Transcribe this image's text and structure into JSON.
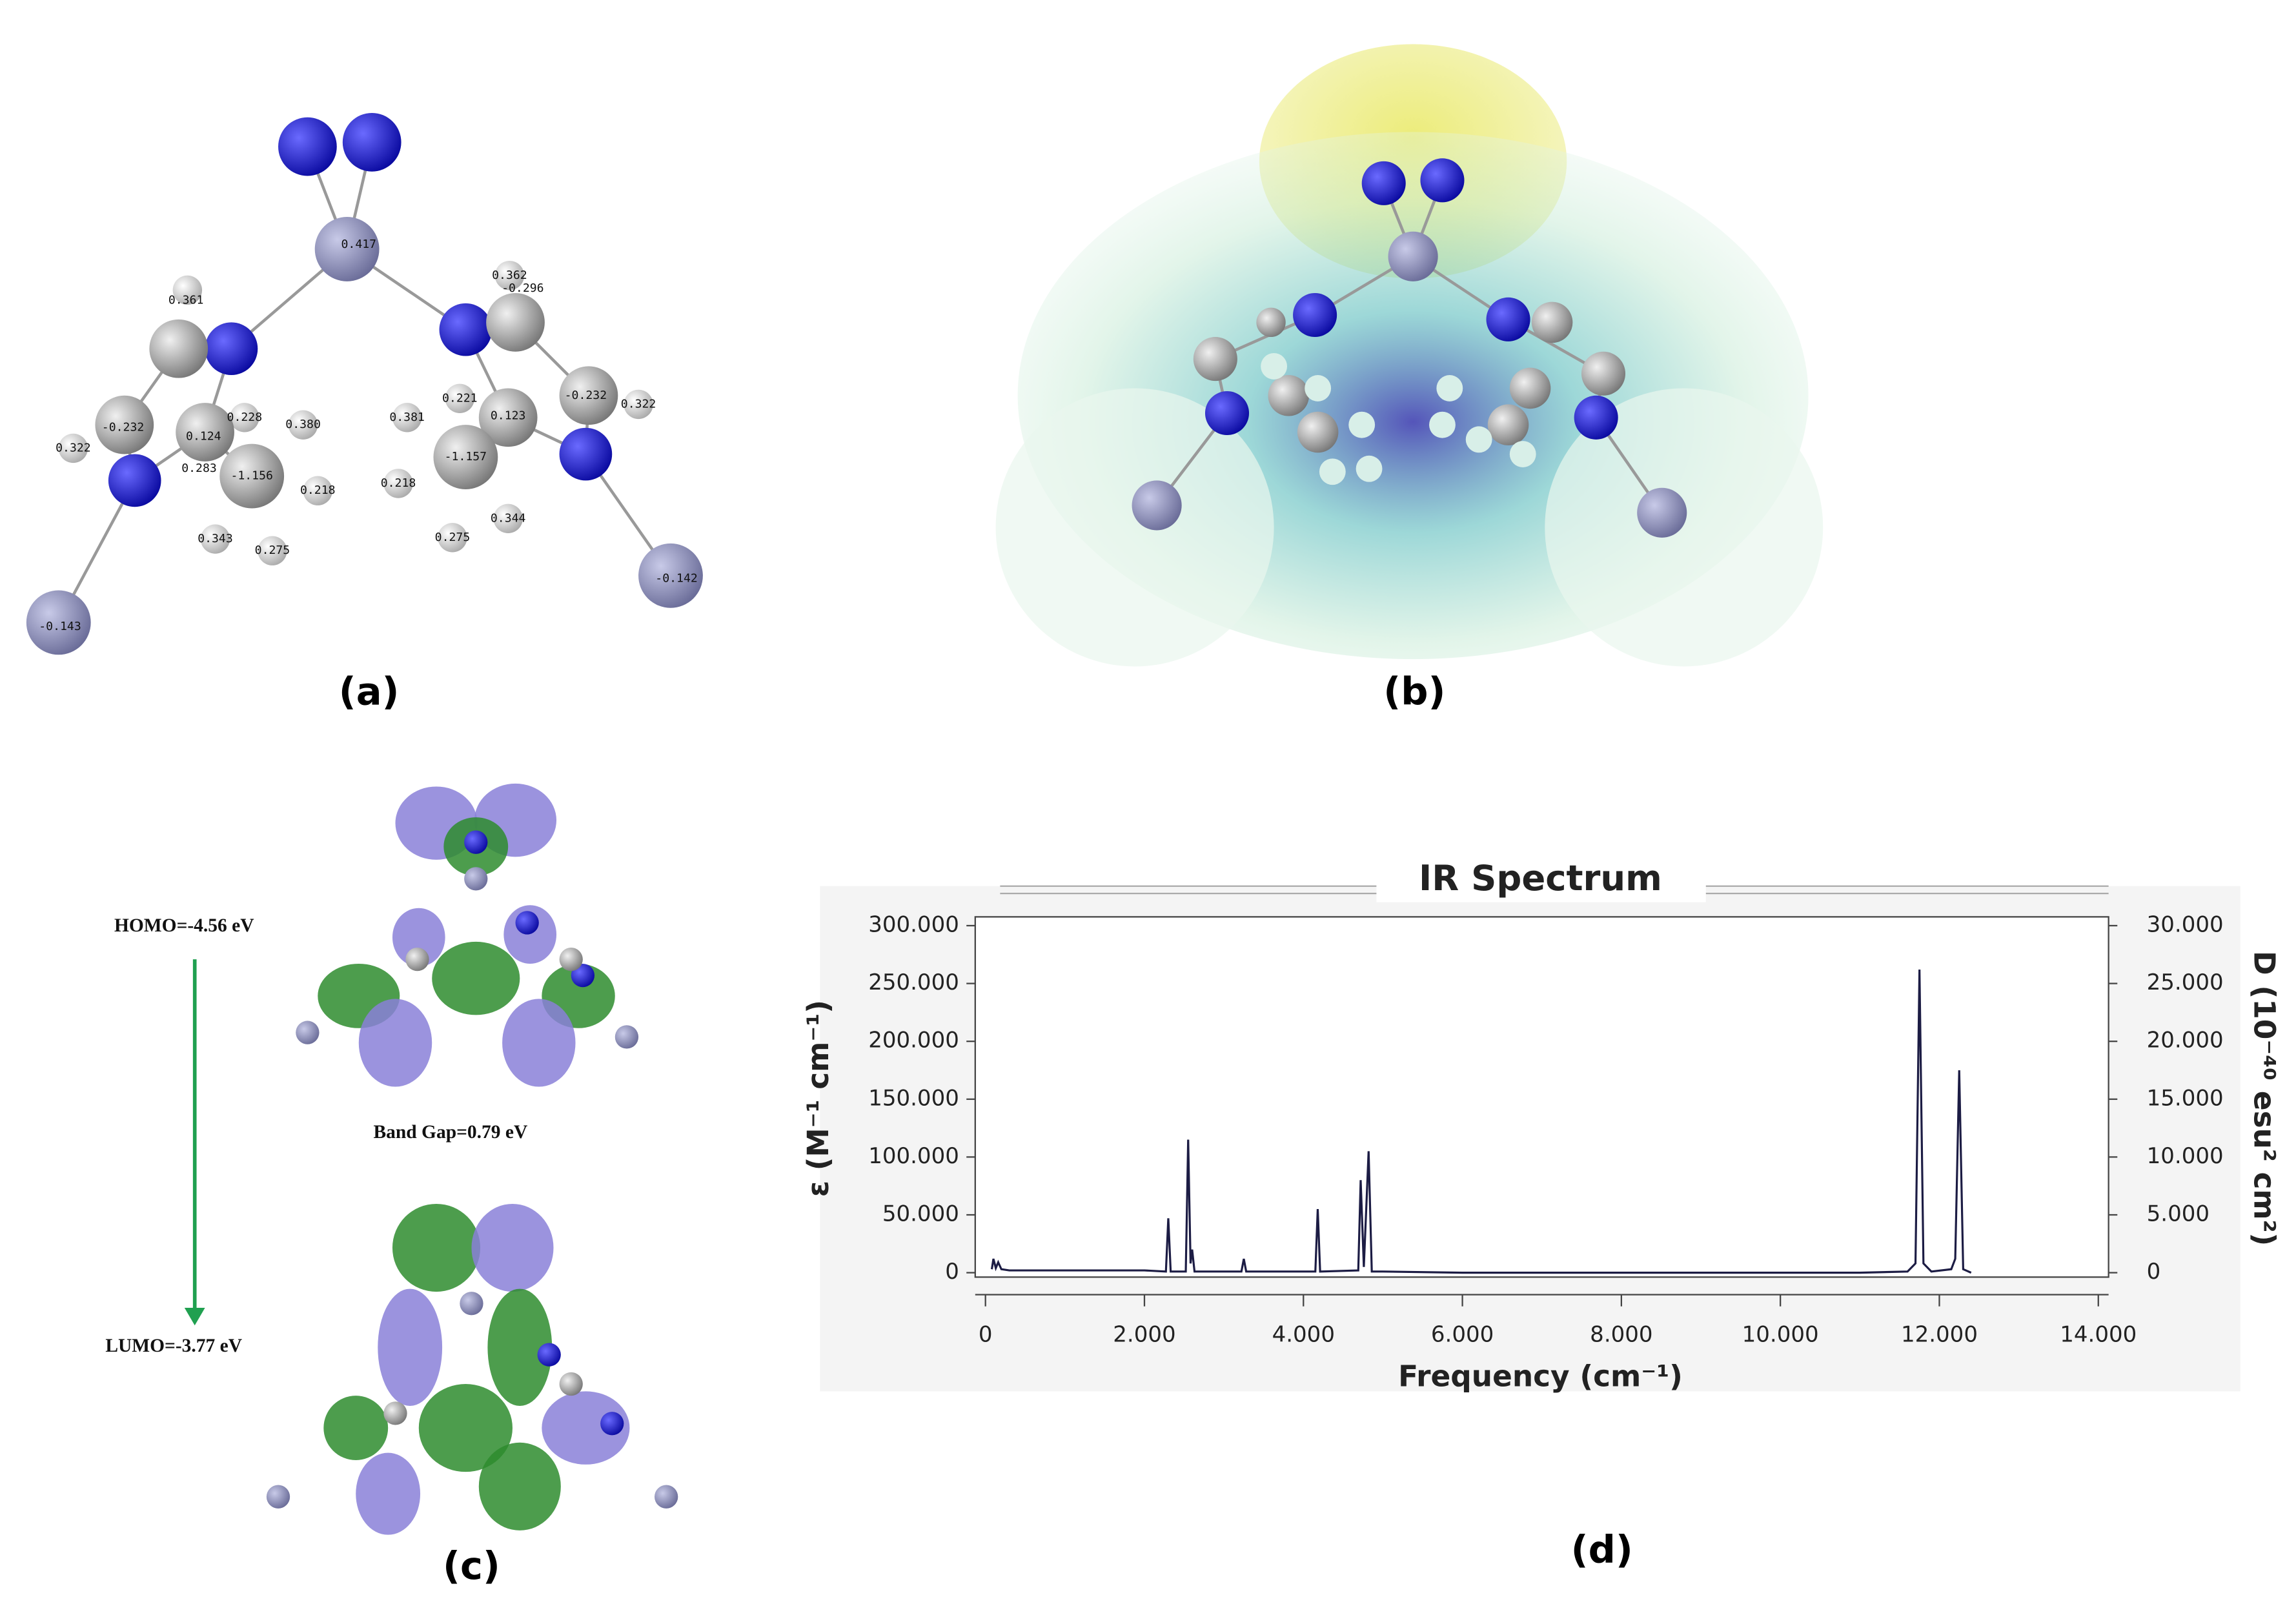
{
  "panels": {
    "a": {
      "label": "(a)",
      "atom_charges": [
        "0.417",
        "-0.143",
        "-0.142",
        "0.362",
        "-0.296",
        "0.361",
        "-0.232",
        "0.322",
        "0.124",
        "0.228",
        "0.380",
        "0.283",
        "-1.156",
        "0.218",
        "0.343",
        "0.275",
        "0.381",
        "0.221",
        "0.123",
        "-0.232",
        "0.322",
        "-1.157",
        "0.218",
        "0.275",
        "0.344"
      ]
    },
    "b": {
      "label": "(b)"
    },
    "c": {
      "label": "(c)",
      "homo": "HOMO=-4.56 eV",
      "band_gap": "Band Gap=0.79 eV",
      "lumo": "LUMO=-3.77 eV"
    },
    "d": {
      "label": "(d)"
    }
  },
  "chart_data": {
    "type": "line",
    "title": "IR Spectrum",
    "x_label": "Frequency (cm⁻¹)",
    "y_label": "ε (M⁻¹ cm⁻¹)",
    "y2_label": "D (10⁻⁴⁰ esu² cm²)",
    "color": "#1c1c44",
    "x": [
      80,
      100,
      130,
      160,
      200,
      300,
      500,
      1000,
      1500,
      2000,
      2270,
      2300,
      2330,
      2520,
      2550,
      2580,
      2600,
      2630,
      3220,
      3250,
      3280,
      4150,
      4180,
      4210,
      4690,
      4720,
      4760,
      4820,
      4860,
      5000,
      6000,
      8000,
      10000,
      11000,
      11600,
      11700,
      11750,
      11800,
      11900,
      12150,
      12200,
      12250,
      12300,
      12400
    ],
    "values": [
      3000,
      12000,
      4000,
      9000,
      3000,
      2000,
      2000,
      2000,
      2000,
      2000,
      1000,
      47000,
      1000,
      1000,
      115000,
      8000,
      20000,
      1000,
      1000,
      12000,
      1000,
      1000,
      55000,
      1000,
      2000,
      80000,
      5000,
      105000,
      1000,
      1000,
      0,
      0,
      0,
      0,
      1000,
      8000,
      262000,
      8000,
      1000,
      3000,
      12000,
      175000,
      3000,
      0
    ],
    "xlim": [
      0,
      14000
    ],
    "xticks": [
      0,
      {
        "value": 2000,
        "label": "2.000"
      },
      {
        "value": 4000,
        "label": "4.000"
      },
      {
        "value": 6000,
        "label": "6.000"
      },
      {
        "value": 8000,
        "label": "8.000"
      },
      {
        "value": 10000,
        "label": "10.000"
      },
      {
        "value": 12000,
        "label": "12.000"
      },
      {
        "value": 14000,
        "label": "14.000"
      }
    ],
    "ylim": [
      0,
      300000
    ],
    "yticks": [
      0,
      {
        "value": 50000,
        "label": "50.000"
      },
      {
        "value": 100000,
        "label": "100.000"
      },
      {
        "value": 150000,
        "label": "150.000"
      },
      {
        "value": 200000,
        "label": "200.000"
      },
      {
        "value": 250000,
        "label": "250.000"
      },
      {
        "value": 300000,
        "label": "300.000"
      }
    ],
    "y2lim": [
      0,
      30000
    ],
    "y2ticks": [
      0,
      {
        "value": 5000,
        "label": "5.000"
      },
      {
        "value": 10000,
        "label": "10.000"
      },
      {
        "value": 15000,
        "label": "15.000"
      },
      {
        "value": 20000,
        "label": "20.000"
      },
      {
        "value": 25000,
        "label": "25.000"
      },
      {
        "value": 30000,
        "label": "30.000"
      }
    ]
  }
}
